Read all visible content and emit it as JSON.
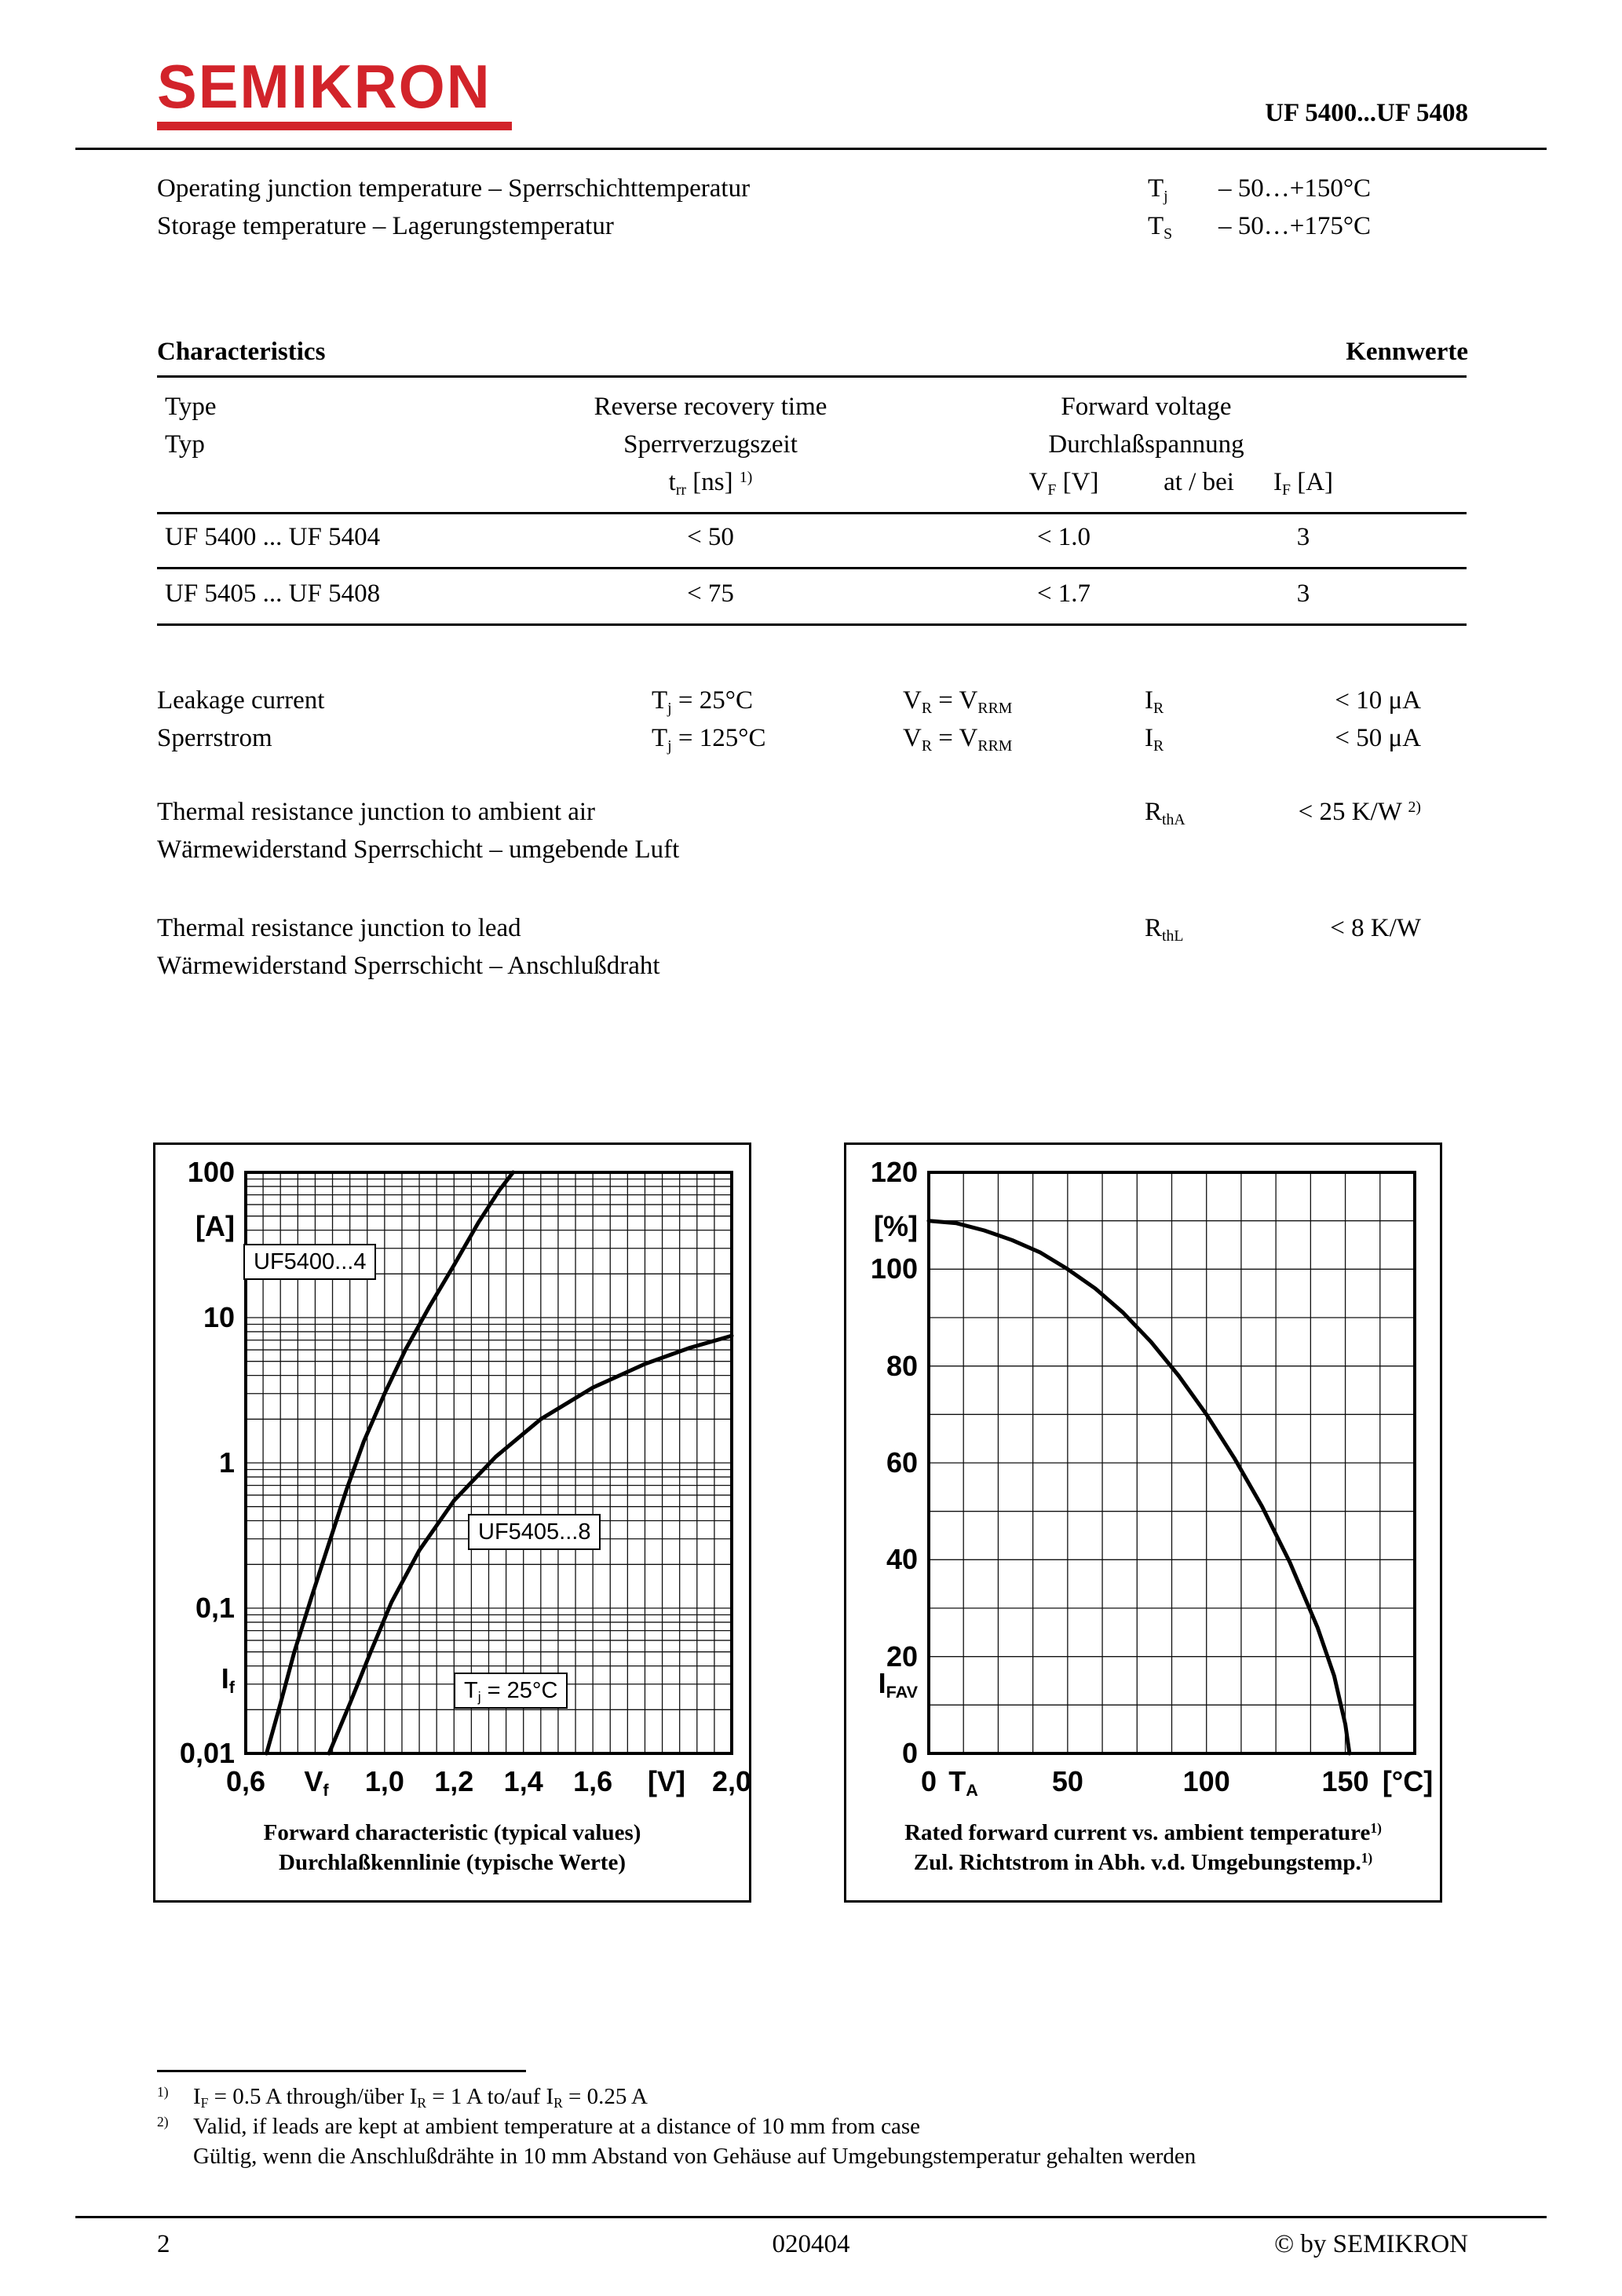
{
  "header": {
    "logo": "SEMIKRON",
    "part_number": "UF 5400...UF 5408"
  },
  "temps": {
    "rows": [
      {
        "label": "Operating junction temperature – Sperrschichttemperatur",
        "symbol": "T~j~",
        "value": "– 50…+150°C"
      },
      {
        "label": "Storage temperature – Lagerungstemperatur",
        "symbol": "T~S~",
        "value": "– 50…+175°C"
      }
    ]
  },
  "characteristics": {
    "title_en": "Characteristics",
    "title_de": "Kennwerte"
  },
  "table": {
    "col_type": {
      "en": "Type",
      "de": "Typ"
    },
    "col_trr": {
      "en": "Reverse recovery time",
      "de": "Sperrverzugszeit",
      "unit": "t~rr~ [ns] ^1)^"
    },
    "col_fv": {
      "en": "Forward voltage",
      "de": "Durchlaßspannung",
      "vf": "V~F~ [V]",
      "at": "at / bei",
      "if": "I~F~ [A]"
    },
    "rows": [
      {
        "type": "UF 5400 ... UF 5404",
        "trr": "< 50",
        "vf": "< 1.0",
        "if": "3"
      },
      {
        "type": "UF 5405 ... UF 5408",
        "trr": "< 75",
        "vf": "< 1.7",
        "if": "3"
      }
    ]
  },
  "leakage": {
    "label_en": "Leakage current",
    "label_de": "Sperrstrom",
    "rows": [
      {
        "cond": "T~j~ = 25°C",
        "vr": "V~R~ = V~RRM~",
        "sym": "I~R~",
        "val": "< 10 μA"
      },
      {
        "cond": "T~j~ = 125°C",
        "vr": "V~R~ = V~RRM~",
        "sym": "I~R~",
        "val": "< 50 μA"
      }
    ]
  },
  "thermal_air": {
    "label_en": "Thermal resistance junction to ambient air",
    "label_de": "Wärmewiderstand Sperrschicht – umgebende Luft",
    "sym": "R~thA~",
    "val": "< 25 K/W ^2)^"
  },
  "thermal_lead": {
    "label_en": "Thermal resistance junction to lead",
    "label_de": "Wärmewiderstand Sperrschicht – Anschlußdraht",
    "sym": "R~thL~",
    "val": "< 8 K/W"
  },
  "chart_data": [
    {
      "type": "line",
      "title": "Forward characteristic (typical values)",
      "title_de": "Durchlaßkennlinie (typische Werte)",
      "x_symbol": "V~f~",
      "x_unit": "[V]",
      "y_symbol": "I~f~",
      "y_unit": "[A]",
      "x_scale": "linear",
      "y_scale": "log",
      "xlim": [
        0.6,
        2.0
      ],
      "ylim": [
        0.01,
        100
      ],
      "x_grid_step": 0.05,
      "x_ticks": [
        {
          "v": 0.6,
          "l": "0,6"
        },
        {
          "v": 1.0,
          "l": "1,0"
        },
        {
          "v": 1.2,
          "l": "1,2"
        },
        {
          "v": 1.4,
          "l": "1,4"
        },
        {
          "v": 1.6,
          "l": "1,6"
        },
        {
          "v": 2.0,
          "l": "2,0"
        }
      ],
      "y_ticks": [
        {
          "v": 100,
          "l": "100"
        },
        {
          "v": 10,
          "l": "10"
        },
        {
          "v": 1,
          "l": "1"
        },
        {
          "v": 0.1,
          "l": "0,1"
        },
        {
          "v": 0.01,
          "l": "0,01"
        }
      ],
      "annotations": [
        {
          "text": "UF5400...4"
        },
        {
          "text": "UF5405...8"
        },
        {
          "text": "T~j~ = 25°C"
        }
      ],
      "series": [
        {
          "name": "UF5400...4",
          "points": [
            [
              0.66,
              0.01
            ],
            [
              0.7,
              0.022
            ],
            [
              0.74,
              0.05
            ],
            [
              0.79,
              0.12
            ],
            [
              0.84,
              0.28
            ],
            [
              0.89,
              0.65
            ],
            [
              0.94,
              1.4
            ],
            [
              1.0,
              3.0
            ],
            [
              1.06,
              6.0
            ],
            [
              1.13,
              12
            ],
            [
              1.2,
              23
            ],
            [
              1.27,
              45
            ],
            [
              1.33,
              75
            ],
            [
              1.37,
              100
            ]
          ]
        },
        {
          "name": "UF5405...8",
          "points": [
            [
              0.84,
              0.01
            ],
            [
              0.9,
              0.022
            ],
            [
              0.96,
              0.05
            ],
            [
              1.02,
              0.11
            ],
            [
              1.1,
              0.25
            ],
            [
              1.2,
              0.55
            ],
            [
              1.32,
              1.1
            ],
            [
              1.45,
              2.0
            ],
            [
              1.6,
              3.3
            ],
            [
              1.75,
              4.8
            ],
            [
              1.88,
              6.2
            ],
            [
              2.0,
              7.5
            ]
          ]
        }
      ]
    },
    {
      "type": "line",
      "title": "Rated forward current vs. ambient temperature^1)^",
      "title_de": "Zul. Richtstrom in Abh. v.d. Umgebungstemp.^1)^",
      "x_symbol": "T~A~",
      "x_unit": "[°C]",
      "y_symbol": "I~FAV~",
      "y_unit": "[%]",
      "x_scale": "linear",
      "y_scale": "linear",
      "xlim": [
        0,
        175
      ],
      "ylim": [
        0,
        120
      ],
      "x_grid_step": 12.5,
      "y_grid_step": 10,
      "x_ticks": [
        {
          "v": 0,
          "l": "0"
        },
        {
          "v": 50,
          "l": "50"
        },
        {
          "v": 100,
          "l": "100"
        },
        {
          "v": 150,
          "l": "150"
        }
      ],
      "y_ticks": [
        {
          "v": 120,
          "l": "120"
        },
        {
          "v": 100,
          "l": "100"
        },
        {
          "v": 80,
          "l": "80"
        },
        {
          "v": 60,
          "l": "60"
        },
        {
          "v": 40,
          "l": "40"
        },
        {
          "v": 20,
          "l": "20"
        },
        {
          "v": 0,
          "l": "0"
        }
      ],
      "annotations": [],
      "series": [
        {
          "name": "derating",
          "points": [
            [
              0,
              110
            ],
            [
              10,
              109.5
            ],
            [
              20,
              108
            ],
            [
              30,
              106
            ],
            [
              40,
              103.5
            ],
            [
              50,
              100
            ],
            [
              60,
              96
            ],
            [
              70,
              91
            ],
            [
              80,
              85
            ],
            [
              90,
              78
            ],
            [
              100,
              70
            ],
            [
              110,
              61
            ],
            [
              120,
              51
            ],
            [
              130,
              39.5
            ],
            [
              140,
              26
            ],
            [
              146,
              16
            ],
            [
              150,
              6
            ],
            [
              151.5,
              0
            ]
          ]
        }
      ]
    }
  ],
  "footnotes": [
    {
      "mark": "^1)^",
      "text": "I~F~ = 0.5 A through/über I~R~ = 1 A to/auf I~R~ = 0.25 A"
    },
    {
      "mark": "^2)^",
      "text": "Valid, if leads are kept at ambient temperature at a distance of 10 mm from case"
    },
    {
      "mark": "",
      "text": "Gültig, wenn die Anschlußdrähte in 10 mm Abstand von Gehäuse auf Umgebungstemperatur gehalten werden"
    }
  ],
  "footer": {
    "page": "2",
    "doc_number": "020404",
    "copyright": "© by SEMIKRON"
  }
}
